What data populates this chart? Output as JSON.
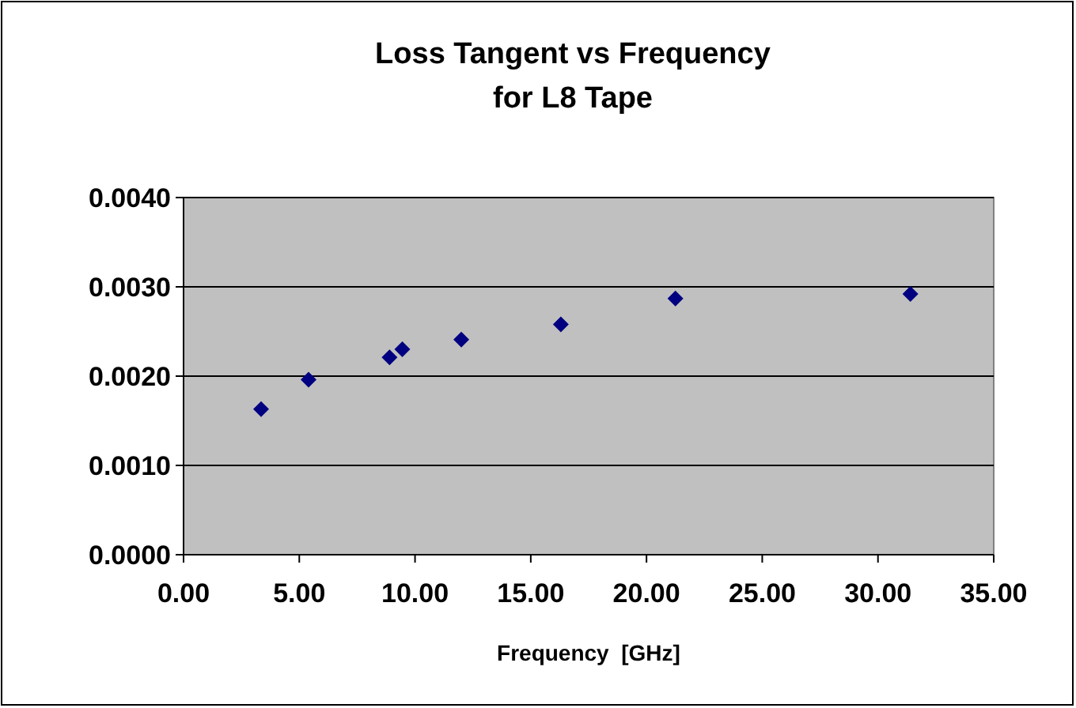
{
  "chart_data": {
    "type": "scatter",
    "title": "Loss Tangent vs Frequency\nfor L8 Tape",
    "xlabel": "Frequency  [GHz]",
    "x": [
      3.35,
      5.4,
      8.9,
      9.45,
      12.0,
      16.3,
      21.25,
      31.4
    ],
    "series": [
      {
        "color": "#000080",
        "values": [
          0.00163,
          0.00196,
          0.00221,
          0.0023,
          0.00241,
          0.00258,
          0.00287,
          0.00292
        ]
      }
    ],
    "xlim": [
      0,
      35
    ],
    "xticks": [
      {
        "value": 0,
        "label": "0.00"
      },
      {
        "value": 5,
        "label": "5.00"
      },
      {
        "value": 10,
        "label": "10.00"
      },
      {
        "value": 15,
        "label": "15.00"
      },
      {
        "value": 20,
        "label": "20.00"
      },
      {
        "value": 25,
        "label": "25.00"
      },
      {
        "value": 30,
        "label": "30.00"
      },
      {
        "value": 35,
        "label": "35.00"
      }
    ],
    "ylim": [
      0,
      0.004
    ],
    "yticks": [
      {
        "value": 0,
        "label": "0.0000"
      },
      {
        "value": 0.001,
        "label": "0.0010"
      },
      {
        "value": 0.002,
        "label": "0.0020"
      },
      {
        "value": 0.003,
        "label": "0.0030"
      },
      {
        "value": 0.004,
        "label": "0.0040"
      }
    ],
    "grid": "y",
    "marker": "diamond"
  }
}
